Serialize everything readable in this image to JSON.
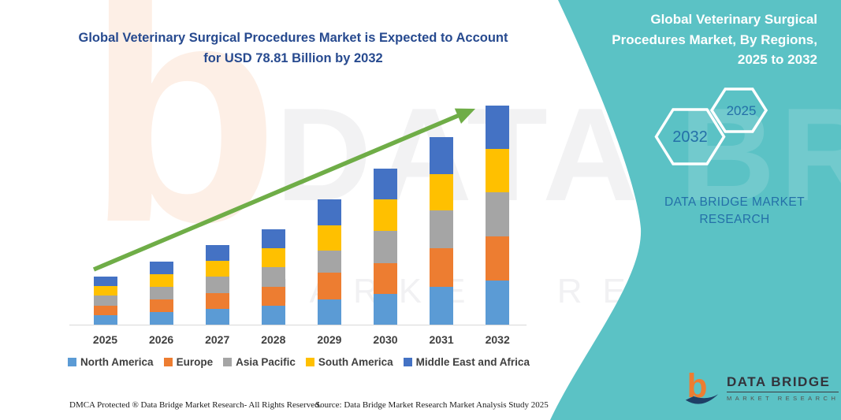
{
  "header": {
    "title": "Global Veterinary Surgical Procedures Market is Expected to Account for USD 78.81 Billion by 2032"
  },
  "right_panel": {
    "title": "Global Veterinary Surgical Procedures Market, By Regions, 2025 to 2032",
    "hexagon_back_label": "2032",
    "hexagon_front_label": "2025",
    "brand_text": "DATA BRIDGE MARKET RESEARCH"
  },
  "logo": {
    "name": "DATA BRIDGE",
    "tagline": "MARKET RESEARCH",
    "glyph": "b"
  },
  "watermarks": {
    "brand": "DATA BRIDGE",
    "tagline": "MARKET RESEARCH",
    "glyph": "b"
  },
  "footer": {
    "dmca": "DMCA Protected ® Data Bridge Market Research-  All Rights Reserved.",
    "source": "Source: Data Bridge Market Research  Market Analysis Study 2025"
  },
  "colors": {
    "teal": "#5BC2C5",
    "title_blue": "#274A8F",
    "panel_text_blue": "#2470A8",
    "arrow_green": "#6FAD47",
    "axis_text": "#3F3F3F",
    "axis_line": "#D9D9D9",
    "footer_text": "#1A1A1A",
    "logo_orange": "#ED7D31",
    "logo_navy": "#1E3F66"
  },
  "chart_data": {
    "type": "bar",
    "stacked": true,
    "title": "Global Veterinary Surgical Procedures Market, By Regions, 2025 to 2032",
    "categories": [
      "2025",
      "2026",
      "2027",
      "2028",
      "2029",
      "2030",
      "2031",
      "2032"
    ],
    "series": [
      {
        "name": "North America",
        "color": "#5B9BD5",
        "values": [
          3.45,
          4.5,
          5.7,
          6.85,
          9.05,
          10.95,
          13.7,
          16.01
        ]
      },
      {
        "name": "Europe",
        "color": "#ED7D31",
        "values": [
          3.45,
          4.55,
          5.75,
          6.85,
          9.8,
          11.05,
          13.9,
          15.8
        ]
      },
      {
        "name": "Asia Pacific",
        "color": "#A5A5A5",
        "values": [
          3.45,
          4.55,
          5.75,
          6.85,
          7.85,
          11.7,
          13.5,
          15.9
        ]
      },
      {
        "name": "South America",
        "color": "#FFC000",
        "values": [
          3.45,
          4.55,
          5.75,
          6.85,
          8.9,
          11.35,
          12.95,
          15.6
        ]
      },
      {
        "name": "Middle East and Africa",
        "color": "#4472C4",
        "values": [
          3.5,
          4.55,
          5.75,
          6.9,
          9.6,
          11.15,
          13.55,
          15.5
        ]
      }
    ],
    "totals": [
      17.3,
      22.7,
      28.7,
      34.3,
      45.2,
      56.2,
      67.6,
      78.81
    ],
    "units": "USD Billion",
    "xlabel": "",
    "ylabel": "",
    "ylim": [
      0,
      80
    ],
    "grid": false,
    "y_axis_visible": false,
    "legend_position": "bottom",
    "annotations": [
      "green upward trend arrow spanning 2025 to 2032"
    ],
    "note": "Y-axis not labeled in figure; values estimated from bar heights scaled so the 2032 total equals USD 78.81 billion"
  }
}
